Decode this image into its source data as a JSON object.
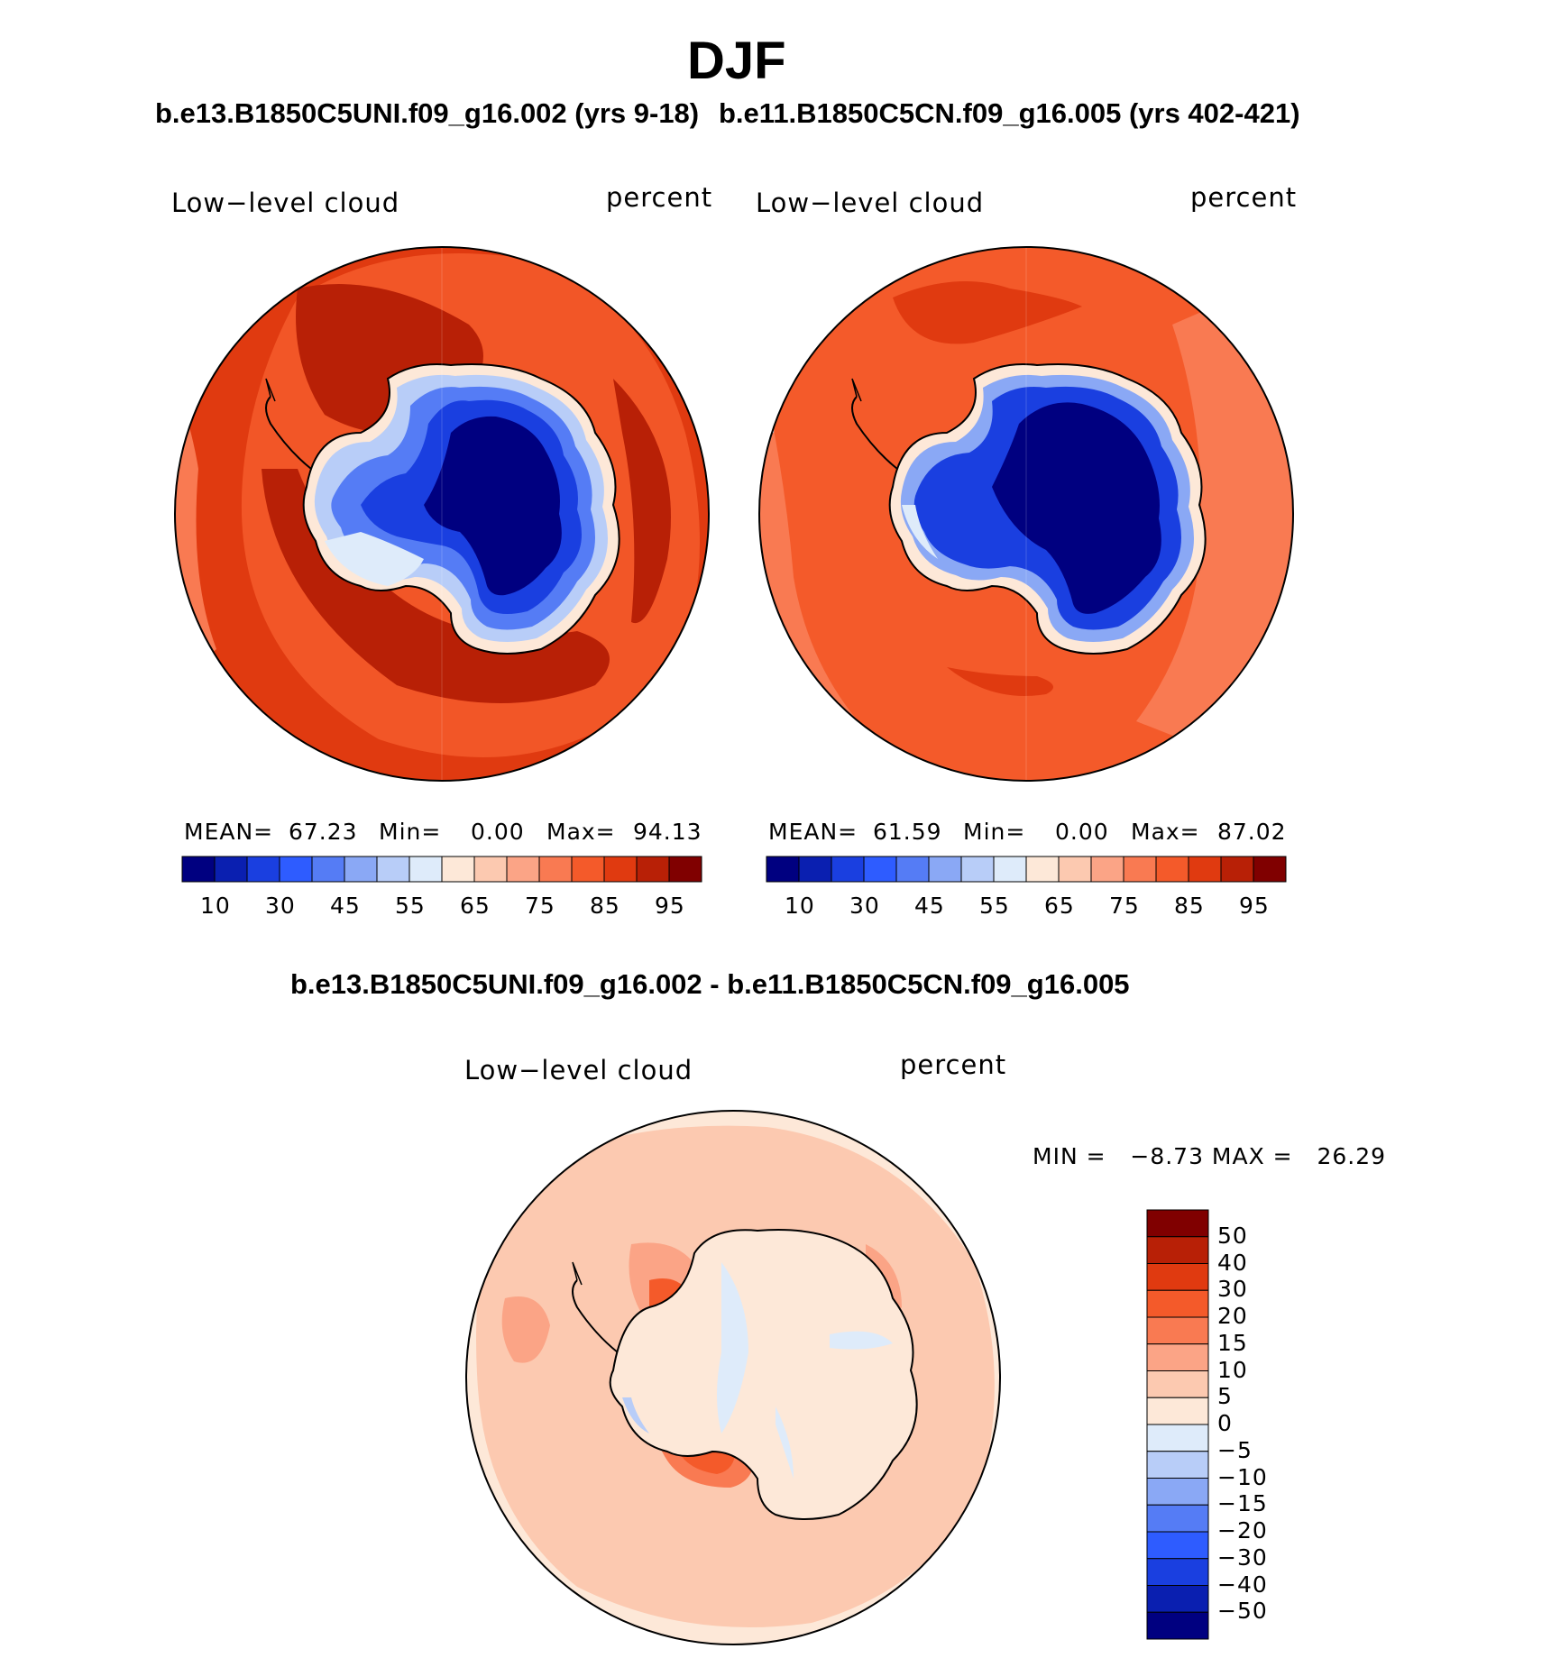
{
  "title": "DJF",
  "panels": [
    {
      "case_title": "b.e13.B1850C5UNI.f09_g16.002 (yrs 9-18)",
      "left_label": "Low−level cloud",
      "right_label": "percent",
      "stats": {
        "mean_label": "MEAN=",
        "mean": "67.23",
        "min_label": "Min=",
        "min": "0.00",
        "max_label": "Max=",
        "max": "94.13"
      },
      "colorbar_ticks": [
        "10",
        "30",
        "45",
        "55",
        "65",
        "75",
        "85",
        "95"
      ]
    },
    {
      "case_title": "b.e11.B1850C5CN.f09_g16.005 (yrs 402-421)",
      "left_label": "Low−level cloud",
      "right_label": "percent",
      "stats": {
        "mean_label": "MEAN=",
        "mean": "61.59",
        "min_label": "Min=",
        "min": "0.00",
        "max_label": "Max=",
        "max": "87.02"
      },
      "colorbar_ticks": [
        "10",
        "30",
        "45",
        "55",
        "65",
        "75",
        "85",
        "95"
      ]
    }
  ],
  "diff_panel": {
    "case_title": "b.e13.B1850C5UNI.f09_g16.002 - b.e11.B1850C5CN.f09_g16.005",
    "left_label": "Low−level cloud",
    "right_label": "percent",
    "minmax_text": "MIN =   −8.73 MAX =   26.29",
    "colorbar_ticks": [
      "50",
      "40",
      "30",
      "20",
      "15",
      "10",
      "5",
      "0",
      "−5",
      "−10",
      "−15",
      "−20",
      "−30",
      "−40",
      "−50"
    ]
  },
  "colors": {
    "abs_scale": [
      "#000080",
      "#0a1fb0",
      "#1a3fe0",
      "#2e5cff",
      "#557cf5",
      "#8aa8f5",
      "#b8cdf8",
      "#deebfa",
      "#fde8d8",
      "#fcc9b0",
      "#fba486",
      "#f97a52",
      "#f45a2a",
      "#e03a10",
      "#b82006",
      "#800000"
    ],
    "diff_scale": [
      "#800000",
      "#b82006",
      "#e03a10",
      "#f45a2a",
      "#f97a52",
      "#fba486",
      "#fcc9b0",
      "#fde8d8",
      "#deebfa",
      "#b8cdf8",
      "#8aa8f5",
      "#557cf5",
      "#2e5cff",
      "#1a3fe0",
      "#0a1fb0",
      "#000080"
    ]
  }
}
